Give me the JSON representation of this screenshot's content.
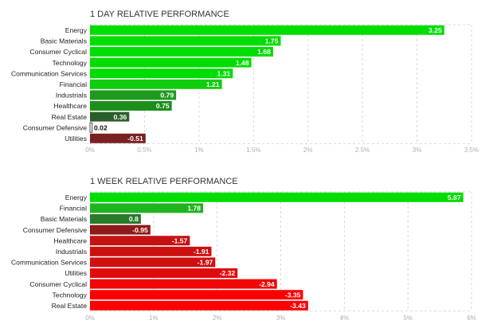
{
  "panels": [
    {
      "title": "1 DAY RELATIVE PERFORMANCE",
      "chart_data": {
        "type": "bar",
        "orientation": "horizontal",
        "categories": [
          "Energy",
          "Basic Materials",
          "Consumer Cyclical",
          "Technology",
          "Communication Services",
          "Financial",
          "Industrials",
          "Healthcare",
          "Real Estate",
          "Consumer Defensive",
          "Utilities"
        ],
        "values": [
          3.25,
          1.75,
          1.68,
          1.48,
          1.31,
          1.21,
          0.79,
          0.75,
          0.36,
          0.02,
          -0.51
        ],
        "value_labels": [
          "3.25",
          "1.75",
          "1.68",
          "1.48",
          "1.31",
          "1.21",
          "0.79",
          "0.75",
          "0.36",
          "0.02",
          "-0.51"
        ],
        "colors": [
          "#00dd00",
          "#00dd00",
          "#00dd00",
          "#00dd00",
          "#00dd00",
          "#0fcd0f",
          "#1e9a1e",
          "#1c8e1c",
          "#2b5e2b",
          "#ffffff",
          "#7a2222"
        ],
        "x_ticks": [
          "0%",
          "0.5%",
          "1%",
          "1.5%",
          "2%",
          "2.5%",
          "3%",
          "3.5%"
        ],
        "xlim": [
          0,
          3.5
        ],
        "grid": true
      }
    },
    {
      "title": "1 WEEK RELATIVE PERFORMANCE",
      "chart_data": {
        "type": "bar",
        "orientation": "horizontal",
        "categories": [
          "Energy",
          "Financial",
          "Basic Materials",
          "Consumer Defensive",
          "Healthcare",
          "Industrials",
          "Communication Services",
          "Utilities",
          "Consumer Cyclical",
          "Technology",
          "Real Estate"
        ],
        "values": [
          5.87,
          1.78,
          0.8,
          -0.95,
          -1.57,
          -1.91,
          -1.97,
          -2.32,
          -2.94,
          -3.35,
          -3.43
        ],
        "value_labels": [
          "5.87",
          "1.78",
          "0.8",
          "-0.95",
          "-1.57",
          "-1.91",
          "-1.97",
          "-2.32",
          "-2.94",
          "-3.35",
          "-3.43"
        ],
        "colors": [
          "#00dd00",
          "#1eb41e",
          "#2a7a2a",
          "#8e1a1a",
          "#c41212",
          "#cc1010",
          "#d01010",
          "#e00c0c",
          "#f00606",
          "#fc0000",
          "#ff0000"
        ],
        "x_ticks": [
          "0%",
          "1%",
          "2%",
          "3%",
          "4%",
          "5%",
          "6%"
        ],
        "xlim": [
          0,
          6
        ],
        "grid": true
      }
    }
  ]
}
